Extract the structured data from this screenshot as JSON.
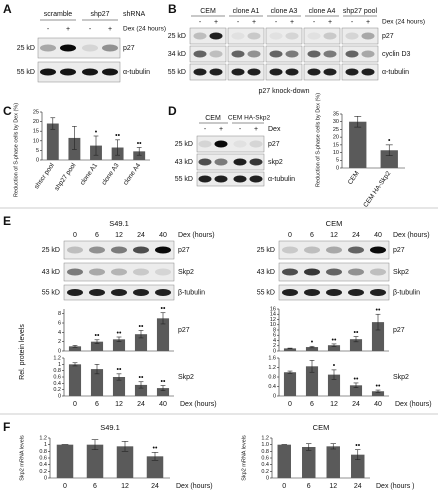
{
  "panels": {
    "A": {
      "letter": "A",
      "groups": [
        "scramble",
        "shp27"
      ],
      "group_label": "shRNA",
      "dex_label": "Dex (24 hours)",
      "signs": [
        "-",
        "+",
        "-",
        "+"
      ],
      "rows": [
        {
          "kd": "25 kD",
          "label": "p27"
        },
        {
          "kd": "55 kD",
          "label": "α-tubulin"
        }
      ]
    },
    "B": {
      "letter": "B",
      "groups": [
        "CEM",
        "clone A1",
        "clone A3",
        "clone A4",
        "shp27 pool"
      ],
      "dex_label": "Dex (24 hours)",
      "signs": [
        "-",
        "+",
        "-",
        "+",
        "-",
        "+",
        "-",
        "+",
        "-",
        "+"
      ],
      "rows": [
        {
          "kd": "25 kD",
          "label": "p27"
        },
        {
          "kd": "34 kD",
          "label": "cyclin D3"
        },
        {
          "kd": "55 kD",
          "label": "α-tubulin"
        }
      ],
      "caption": "p27 knock-down"
    },
    "C": {
      "letter": "C"
    },
    "D": {
      "letter": "D",
      "groups": [
        "CEM",
        "CEM HA-Skp2"
      ],
      "dex_label": "Dex",
      "signs": [
        "-",
        "+",
        "-",
        "+"
      ],
      "rows": [
        {
          "kd": "25 kD",
          "label": "p27"
        },
        {
          "kd": "43 kD",
          "label": "skp2"
        },
        {
          "kd": "55 kD",
          "label": "α-tubulin"
        }
      ]
    },
    "E": {
      "letter": "E",
      "ylabel": "Rel. protein levels",
      "blots": [
        {
          "title": "S49.1",
          "time_label": "Dex (hours)",
          "times": [
            "0",
            "6",
            "12",
            "24",
            "40"
          ],
          "rows": [
            {
              "kd": "25 kD",
              "label": "p27"
            },
            {
              "kd": "43 kD",
              "label": "Skp2"
            },
            {
              "kd": "55 kD",
              "label": "β-tubulin"
            }
          ]
        },
        {
          "title": "CEM",
          "time_label": "Dex (hours)",
          "times": [
            "0",
            "6",
            "12",
            "24",
            "40"
          ],
          "rows": [
            {
              "kd": "25 kD",
              "label": "p27"
            },
            {
              "kd": "43 kD",
              "label": "Skp2"
            },
            {
              "kd": "55 kD",
              "label": "β-tubulin"
            }
          ]
        }
      ]
    },
    "F": {
      "letter": "F"
    }
  },
  "chart_data": [
    {
      "type": "bar",
      "ylabel": "Reduction of S-phase cells by Dex (%)",
      "categories": [
        "shscr pool",
        "shp27 pool",
        "clone A1",
        "clone A3",
        "clone A4"
      ],
      "values": [
        19,
        11.5,
        7.5,
        6.5,
        4.5
      ],
      "errors": [
        3,
        6,
        5,
        4,
        2
      ],
      "markers": [
        null,
        null,
        "•",
        "••",
        "••"
      ],
      "color": "#5a5a5a",
      "ylim": [
        0,
        25
      ],
      "yticks": [
        0,
        5,
        10,
        15,
        20,
        25
      ]
    },
    {
      "type": "bar",
      "ylabel": "Reduction of S-phase cells by Dex (%)",
      "categories": [
        "CEM",
        "CEM HA-Skp2"
      ],
      "values": [
        30,
        11.5
      ],
      "errors": [
        3.5,
        3.5
      ],
      "markers": [
        null,
        "•"
      ],
      "color": "#5a5a5a",
      "ylim": [
        0,
        35
      ],
      "yticks": [
        0,
        5,
        10,
        15,
        20,
        25,
        30,
        35
      ]
    },
    {
      "type": "bar",
      "label": "p27",
      "values": [
        1,
        2,
        2.5,
        3.6,
        7
      ],
      "errors": [
        0.2,
        0.4,
        0.5,
        0.8,
        1.2
      ],
      "markers": [
        null,
        "••",
        "••",
        "••",
        "••"
      ],
      "color": "#5a5a5a",
      "ylim": [
        0,
        9
      ],
      "yticks": [
        0,
        2,
        4,
        6,
        8
      ]
    },
    {
      "type": "bar",
      "label": "Skp2",
      "xlabel": "Dex (hours)",
      "categories": [
        0,
        6,
        12,
        24,
        40
      ],
      "values": [
        1,
        0.85,
        0.6,
        0.35,
        0.25
      ],
      "errors": [
        0.05,
        0.15,
        0.1,
        0.1,
        0.08
      ],
      "markers": [
        null,
        null,
        "••",
        "••",
        "••"
      ],
      "color": "#5a5a5a",
      "ylim": [
        0,
        1.2
      ],
      "yticks": [
        0,
        0.2,
        0.4,
        0.6,
        0.8,
        1,
        1.2
      ]
    },
    {
      "type": "bar",
      "label": "p27",
      "values": [
        1,
        1.5,
        2.2,
        4.5,
        11
      ],
      "errors": [
        0.1,
        0.3,
        0.5,
        1,
        3
      ],
      "markers": [
        null,
        "•",
        "••",
        "••",
        "••"
      ],
      "color": "#5a5a5a",
      "ylim": [
        0,
        16
      ],
      "yticks": [
        0,
        2,
        4,
        6,
        8,
        10,
        12,
        14,
        16
      ]
    },
    {
      "type": "bar",
      "label": "Skp2",
      "xlabel": "Dex (hours)",
      "categories": [
        0,
        6,
        12,
        24,
        40
      ],
      "values": [
        1,
        1.25,
        0.9,
        0.45,
        0.2
      ],
      "errors": [
        0.05,
        0.25,
        0.2,
        0.1,
        0.05
      ],
      "markers": [
        null,
        null,
        "•",
        "••",
        "••"
      ],
      "color": "#5a5a5a",
      "ylim": [
        0,
        1.6
      ],
      "yticks": [
        0,
        0.4,
        0.8,
        1.2,
        1.6
      ]
    },
    {
      "type": "bar",
      "title": "S49.1",
      "ylabel": "Skp2 mRNA levels",
      "xlabel": "Dex (hours)",
      "categories": [
        0,
        6,
        12,
        24
      ],
      "values": [
        1,
        1,
        0.95,
        0.65
      ],
      "errors": [
        0,
        0.15,
        0.15,
        0.12
      ],
      "markers": [
        null,
        null,
        null,
        "••"
      ],
      "color": "#5a5a5a",
      "ylim": [
        0,
        1.2
      ],
      "yticks": [
        0,
        0.2,
        0.4,
        0.6,
        0.8,
        1,
        1.2
      ]
    },
    {
      "type": "bar",
      "title": "CEM",
      "ylabel": "Skp2 mRNA levels",
      "xlabel": "Dex (hours )",
      "categories": [
        0,
        6,
        12,
        24
      ],
      "values": [
        1,
        0.93,
        0.95,
        0.7
      ],
      "errors": [
        0,
        0.1,
        0.08,
        0.15
      ],
      "markers": [
        null,
        null,
        null,
        "••"
      ],
      "color": "#5a5a5a",
      "ylim": [
        0,
        1.2
      ],
      "yticks": [
        0,
        0.2,
        0.4,
        0.6,
        0.8,
        {
          "value": 1,
          "label": "1.0"
        },
        1.2
      ]
    }
  ]
}
